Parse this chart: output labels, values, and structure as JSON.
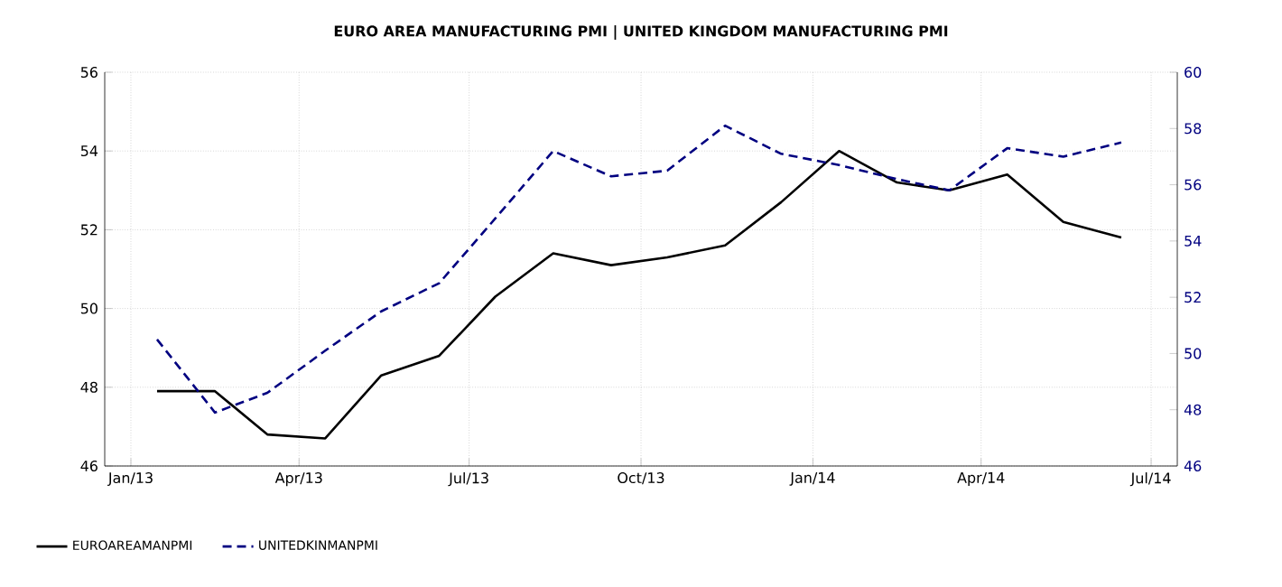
{
  "chart_data": {
    "type": "line",
    "title": "EURO AREA MANUFACTURING PMI |  UNITED KINGDOM MANUFACTURING PMI",
    "x": [
      "2013-01-15",
      "2013-02-15",
      "2013-03-15",
      "2013-04-15",
      "2013-05-15",
      "2013-06-15",
      "2013-07-15",
      "2013-08-15",
      "2013-09-15",
      "2013-10-15",
      "2013-11-15",
      "2013-12-15",
      "2014-01-15",
      "2014-02-15",
      "2014-03-15",
      "2014-04-15",
      "2014-05-15",
      "2014-06-15"
    ],
    "series": [
      {
        "name": "EUROAREAMANPMI",
        "color": "#000000",
        "line_style": "solid",
        "values": [
          47.9,
          47.9,
          46.8,
          46.7,
          48.3,
          48.8,
          50.3,
          51.4,
          51.1,
          51.3,
          51.6,
          52.7,
          54.0,
          53.2,
          53.0,
          53.4,
          52.2,
          51.8
        ]
      },
      {
        "name": "UNITEDKINMANPMI",
        "color": "#000080",
        "line_style": "dashed",
        "axis": "y2",
        "values": [
          50.5,
          47.9,
          48.6,
          50.1,
          51.5,
          52.5,
          54.8,
          57.2,
          56.3,
          56.5,
          58.1,
          57.1,
          56.7,
          56.2,
          55.8,
          57.3,
          57.0,
          57.5
        ]
      }
    ],
    "xlim": [
      "2012-12-18",
      "2014-07-15"
    ],
    "xticks": [
      {
        "value": "2013-01-01",
        "label": "Jan/13"
      },
      {
        "value": "2013-04-01",
        "label": "Apr/13"
      },
      {
        "value": "2013-07-01",
        "label": "Jul/13"
      },
      {
        "value": "2013-10-01",
        "label": "Oct/13"
      },
      {
        "value": "2014-01-01",
        "label": "Jan/14"
      },
      {
        "value": "2014-04-01",
        "label": "Apr/14"
      },
      {
        "value": "2014-07-01",
        "label": "Jul/14"
      }
    ],
    "ylim": [
      46,
      56
    ],
    "yticks": [
      46,
      48,
      50,
      52,
      54,
      56
    ],
    "y2lim": [
      46,
      60
    ],
    "y2ticks": [
      46,
      48,
      50,
      52,
      54,
      56,
      58,
      60
    ],
    "grid": true,
    "legend": "bottom left",
    "marker": "none"
  }
}
